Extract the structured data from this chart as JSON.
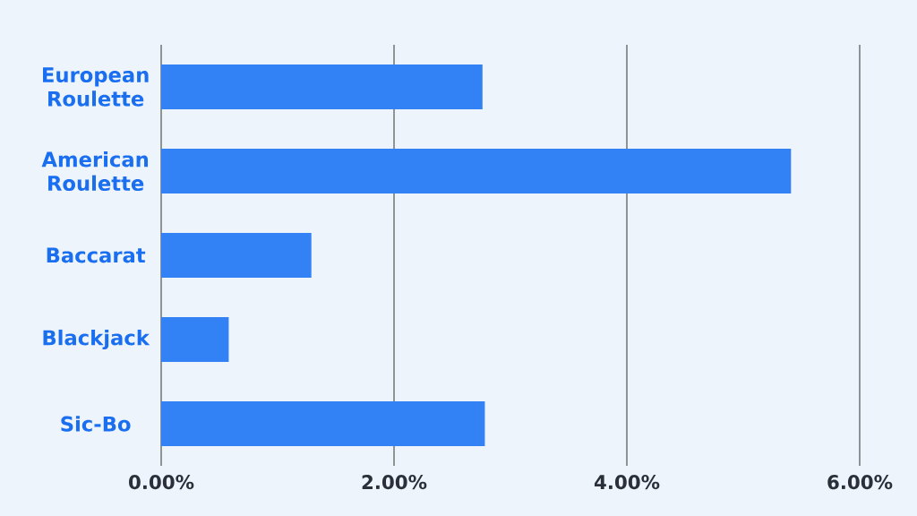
{
  "chart_data": {
    "type": "bar",
    "orientation": "horizontal",
    "categories": [
      "European Roulette",
      "American Roulette",
      "Baccarat",
      "Blackjack",
      "Sic-Bo"
    ],
    "values": [
      2.76,
      5.41,
      1.29,
      0.58,
      2.78
    ],
    "color": "#3282f6",
    "xlim": [
      0,
      6
    ],
    "xticks": [
      {
        "value": 0,
        "label": "0.00%"
      },
      {
        "value": 2,
        "label": "2.00%"
      },
      {
        "value": 4,
        "label": "4.00%"
      },
      {
        "value": 6,
        "label": "6.00%"
      }
    ],
    "grid": "x"
  }
}
